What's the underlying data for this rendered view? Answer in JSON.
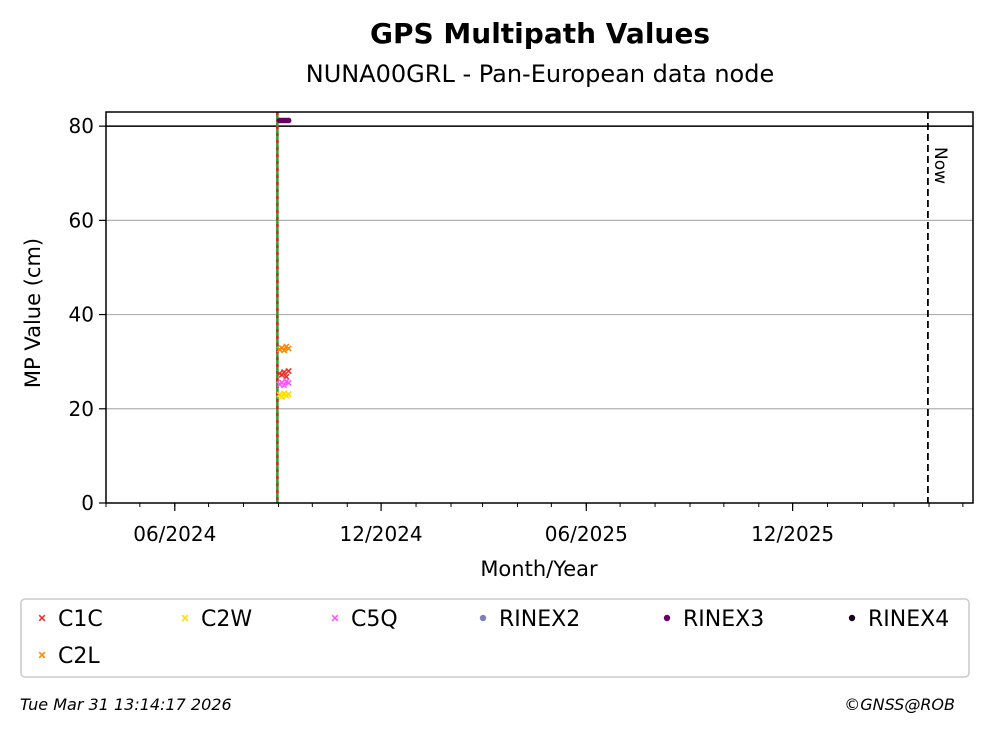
{
  "chart_data": {
    "type": "scatter",
    "title": "GPS Multipath Values",
    "subtitle": "NUNA00GRL - Pan-European data node",
    "xlabel": "Month/Year",
    "ylabel": "MP Value (cm)",
    "ylim": [
      0,
      83
    ],
    "xlim": [
      "2024-04-01",
      "2026-05-10"
    ],
    "x_ticks": [
      "06/2024",
      "12/2024",
      "06/2025",
      "12/2025"
    ],
    "y_ticks": [
      0,
      20,
      40,
      60,
      80
    ],
    "grid": "horizontal",
    "reference_line_y": 80,
    "now_marker": {
      "date": "2026-03-31",
      "label": "Now"
    },
    "event_line": {
      "date": "2024-08-31",
      "colors": [
        "#d62728",
        "#2ca02c"
      ]
    },
    "series": [
      {
        "name": "C1C",
        "color": "#e8332b",
        "marker": "x",
        "points": [
          [
            "2024-09-02",
            27.5
          ],
          [
            "2024-09-04",
            27.2
          ],
          [
            "2024-09-06",
            27.8
          ],
          [
            "2024-09-08",
            26.8
          ],
          [
            "2024-09-10",
            28.0
          ]
        ]
      },
      {
        "name": "C2W",
        "color": "#ffdd00",
        "marker": "x",
        "points": [
          [
            "2024-09-02",
            23.0
          ],
          [
            "2024-09-04",
            22.5
          ],
          [
            "2024-09-06",
            23.3
          ],
          [
            "2024-09-08",
            22.8
          ],
          [
            "2024-09-10",
            23.1
          ]
        ]
      },
      {
        "name": "C5Q",
        "color": "#ff55ff",
        "marker": "x",
        "points": [
          [
            "2024-09-02",
            25.2
          ],
          [
            "2024-09-04",
            25.6
          ],
          [
            "2024-09-06",
            25.0
          ],
          [
            "2024-09-08",
            25.8
          ],
          [
            "2024-09-10",
            25.5
          ]
        ]
      },
      {
        "name": "RINEX2",
        "color": "#7f7fbf",
        "marker": "o",
        "points": []
      },
      {
        "name": "RINEX3",
        "color": "#660066",
        "marker": "o",
        "points": [
          [
            "2024-09-02",
            81.2
          ],
          [
            "2024-09-04",
            81.2
          ],
          [
            "2024-09-06",
            81.2
          ],
          [
            "2024-09-08",
            81.2
          ],
          [
            "2024-09-10",
            81.2
          ]
        ]
      },
      {
        "name": "RINEX4",
        "color": "#1a001a",
        "marker": "o",
        "points": []
      },
      {
        "name": "C2L",
        "color": "#ff8800",
        "marker": "x",
        "points": [
          [
            "2024-09-02",
            32.6
          ],
          [
            "2024-09-04",
            32.9
          ],
          [
            "2024-09-06",
            32.4
          ],
          [
            "2024-09-08",
            33.2
          ],
          [
            "2024-09-10",
            32.8
          ]
        ]
      }
    ]
  },
  "footer": {
    "timestamp": "Tue Mar 31 13:14:17 2026",
    "copyright": "©GNSS@ROB"
  }
}
